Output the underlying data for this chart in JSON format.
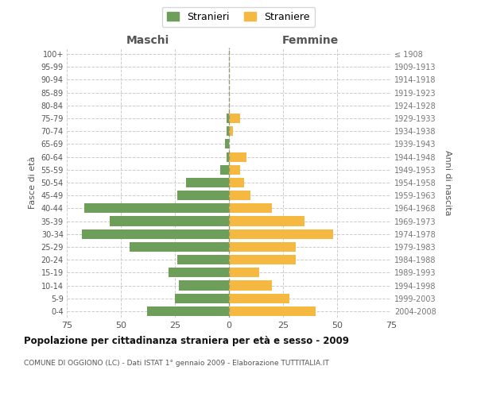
{
  "age_groups": [
    "100+",
    "95-99",
    "90-94",
    "85-89",
    "80-84",
    "75-79",
    "70-74",
    "65-69",
    "60-64",
    "55-59",
    "50-54",
    "45-49",
    "40-44",
    "35-39",
    "30-34",
    "25-29",
    "20-24",
    "15-19",
    "10-14",
    "5-9",
    "0-4"
  ],
  "birth_years": [
    "≤ 1908",
    "1909-1913",
    "1914-1918",
    "1919-1923",
    "1924-1928",
    "1929-1933",
    "1934-1938",
    "1939-1943",
    "1944-1948",
    "1949-1953",
    "1954-1958",
    "1959-1963",
    "1964-1968",
    "1969-1973",
    "1974-1978",
    "1979-1983",
    "1984-1988",
    "1989-1993",
    "1994-1998",
    "1999-2003",
    "2004-2008"
  ],
  "maschi": [
    0,
    0,
    0,
    0,
    0,
    1,
    1,
    2,
    1,
    4,
    20,
    24,
    67,
    55,
    68,
    46,
    24,
    28,
    23,
    25,
    38
  ],
  "femmine": [
    0,
    0,
    0,
    0,
    0,
    5,
    2,
    0,
    8,
    5,
    7,
    10,
    20,
    35,
    48,
    31,
    31,
    14,
    20,
    28,
    40
  ],
  "maschi_color": "#6d9e5a",
  "femmine_color": "#f5b942",
  "background_color": "#ffffff",
  "grid_color": "#cccccc",
  "title": "Popolazione per cittadinanza straniera per età e sesso - 2009",
  "subtitle": "COMUNE DI OGGIONO (LC) - Dati ISTAT 1° gennaio 2009 - Elaborazione TUTTITALIA.IT",
  "xlabel_left": "Maschi",
  "xlabel_right": "Femmine",
  "ylabel_left": "Fasce di età",
  "ylabel_right": "Anni di nascita",
  "legend_maschi": "Stranieri",
  "legend_femmine": "Straniere",
  "xlim": 75,
  "bar_height": 0.75
}
